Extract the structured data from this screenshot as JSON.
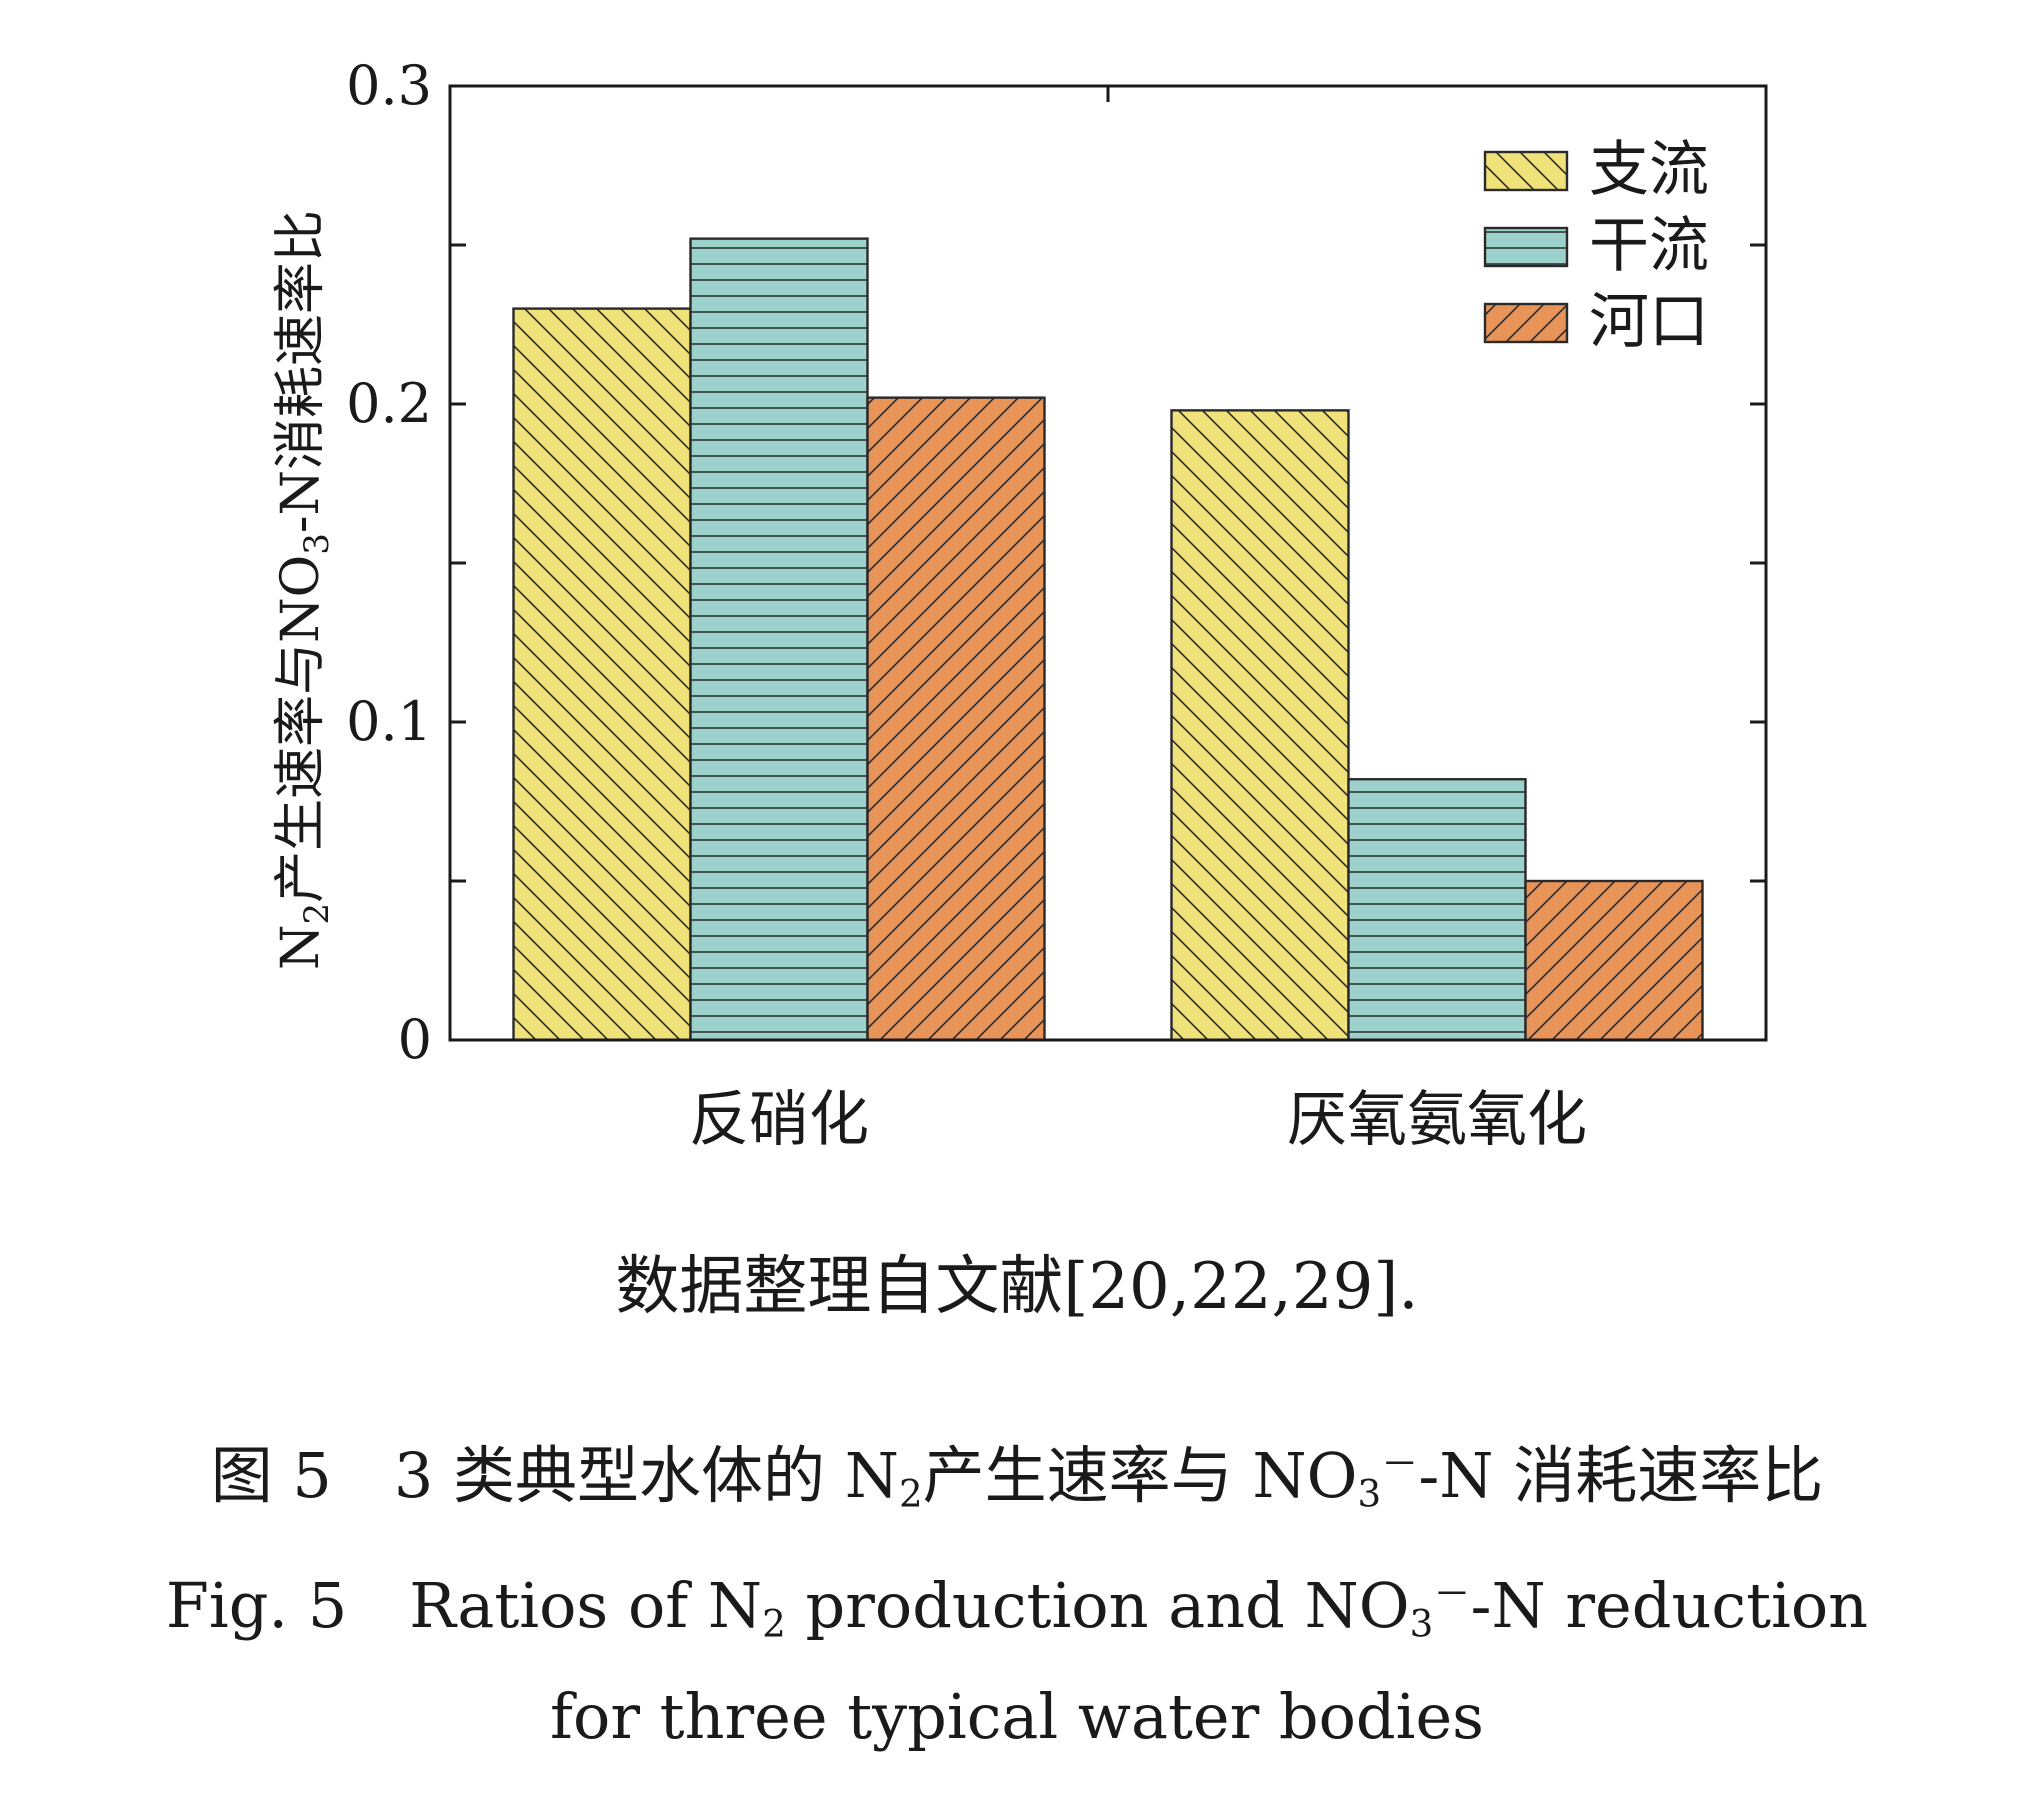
{
  "chart_data": {
    "type": "bar",
    "categories": [
      "反硝化",
      "厌氧氨氧化"
    ],
    "series": [
      {
        "name": "支流",
        "values": [
          0.23,
          0.198
        ],
        "color": "#f0e27a",
        "pattern": "hatch-backslash"
      },
      {
        "name": "干流",
        "values": [
          0.252,
          0.082
        ],
        "color": "#9dd1cb",
        "pattern": "hatch-horizontal"
      },
      {
        "name": "河口",
        "values": [
          0.202,
          0.05
        ],
        "color": "#e89358",
        "pattern": "hatch-slash"
      }
    ],
    "ylim": [
      0,
      0.3
    ],
    "yticks": [
      "0",
      "0.1",
      "0.2",
      "0.3"
    ],
    "ylabel": {
      "part1": "N",
      "sub1": "2",
      "part2": "产生速率与NO",
      "sub2": "3",
      "part3": "-N消耗速率比"
    },
    "xlabel": "",
    "title": "",
    "legend_position": "top-right",
    "grid": false
  },
  "note": "数据整理自文献[20,22,29].",
  "caption_zh": {
    "prefix": "图 5　3 类典型水体的 N",
    "sub1": "2",
    "mid": "产生速率与 NO",
    "sub2": "3",
    "sup": "－",
    "suffix": "-N 消耗速率比"
  },
  "caption_en": {
    "prefix": "Fig. 5　Ratios of N",
    "sub1": "2",
    "mid": " production and NO",
    "sub2": "3",
    "sup": "－",
    "suffix": "-N reduction",
    "line2": "for three typical water bodies"
  }
}
